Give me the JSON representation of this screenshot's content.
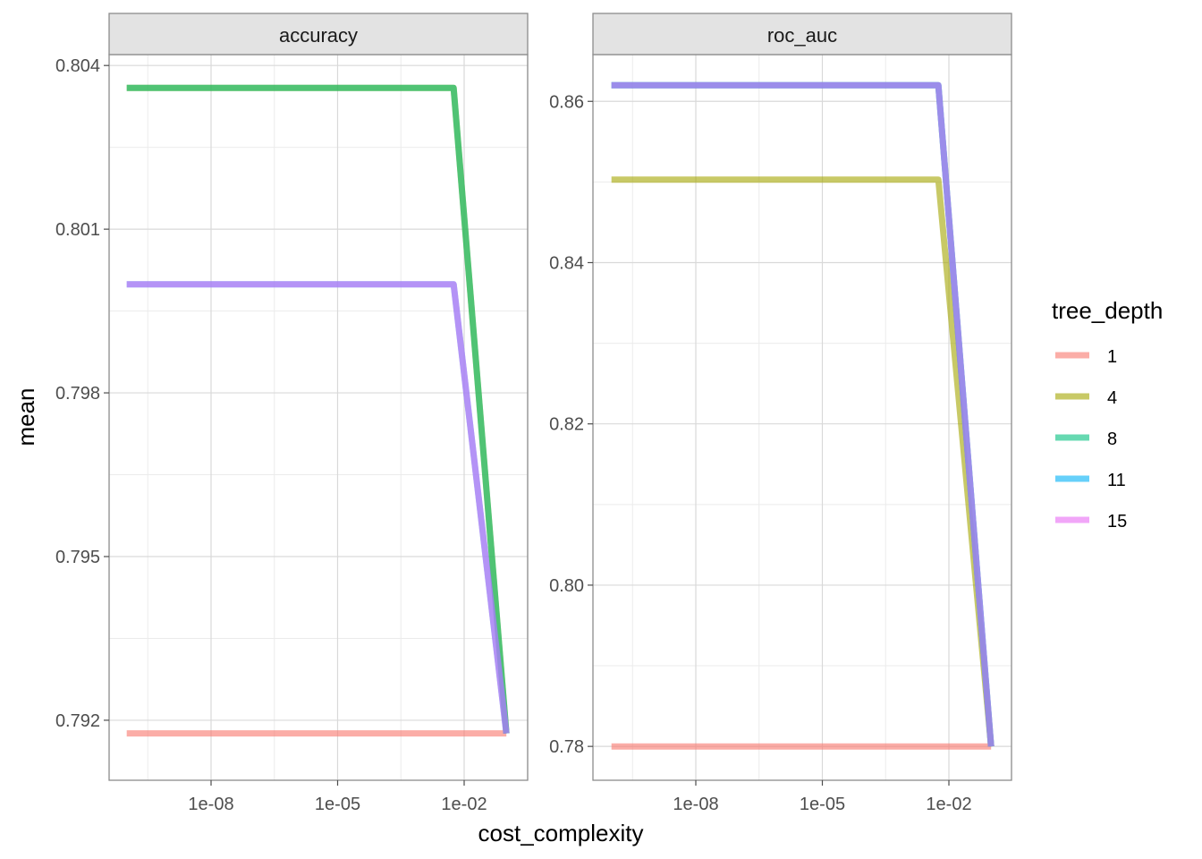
{
  "chart_data": {
    "type": "line",
    "xlabel": "cost_complexity",
    "ylabel": "mean",
    "x_scale": "log10",
    "x_ticks": [
      1e-08,
      1e-05,
      0.01
    ],
    "x_tick_labels": [
      "1e-08",
      "1e-05",
      "1e-02"
    ],
    "grid": true,
    "legend": {
      "title": "tree_depth",
      "placement": "right",
      "entries": [
        {
          "label": "1",
          "color": "#F8766D"
        },
        {
          "label": "4",
          "color": "#A3A500"
        },
        {
          "label": "8",
          "color": "#00BF7D"
        },
        {
          "label": "11",
          "color": "#00B0F6"
        },
        {
          "label": "15",
          "color": "#E76BF3"
        }
      ]
    },
    "x": [
      1e-10,
      1.778e-10,
      3.162e-09,
      5.623e-08,
      1e-06,
      1.778e-05,
      0.0003162,
      0.005623,
      0.1
    ],
    "facets": [
      {
        "strip": "accuracy",
        "ylim": [
          0.7909,
          0.8042
        ],
        "y_ticks": [
          0.792,
          0.795,
          0.798,
          0.801,
          0.804
        ],
        "y_tick_labels": [
          "0.792",
          "0.795",
          "0.798",
          "0.801",
          "0.804"
        ],
        "series": [
          {
            "name": "1",
            "color": "#F8766D",
            "values": [
              0.79176,
              0.79176,
              0.79176,
              0.79176,
              0.79176,
              0.79176,
              0.79176,
              0.79176,
              0.79176
            ]
          },
          {
            "name": "4",
            "color": "#A3A500",
            "values": [
              0.80359,
              0.80359,
              0.80359,
              0.80359,
              0.80359,
              0.80359,
              0.80359,
              0.80359,
              0.79176
            ]
          },
          {
            "name": "8",
            "color": "#00BF7D",
            "values": [
              0.80359,
              0.80359,
              0.80359,
              0.80359,
              0.80359,
              0.80359,
              0.80359,
              0.80359,
              0.79176
            ]
          },
          {
            "name": "11",
            "color": "#00B0F6",
            "values": [
              0.79999,
              0.79999,
              0.79999,
              0.79999,
              0.79999,
              0.79999,
              0.79999,
              0.79999,
              0.79176
            ]
          },
          {
            "name": "15",
            "color": "#E76BF3",
            "values": [
              0.79999,
              0.79999,
              0.79999,
              0.79999,
              0.79999,
              0.79999,
              0.79999,
              0.79999,
              0.79176
            ]
          }
        ]
      },
      {
        "strip": "roc_auc",
        "ylim": [
          0.7758,
          0.8658
        ],
        "y_ticks": [
          0.78,
          0.8,
          0.82,
          0.84,
          0.86
        ],
        "y_tick_labels": [
          "0.78",
          "0.80",
          "0.82",
          "0.84",
          "0.86"
        ],
        "series": [
          {
            "name": "1",
            "color": "#F8766D",
            "values": [
              0.78,
              0.78,
              0.78,
              0.78,
              0.78,
              0.78,
              0.78,
              0.78,
              0.78
            ]
          },
          {
            "name": "4",
            "color": "#A3A500",
            "values": [
              0.8503,
              0.8503,
              0.8503,
              0.8503,
              0.8503,
              0.8503,
              0.8503,
              0.8503,
              0.78
            ]
          },
          {
            "name": "8",
            "color": "#00BF7D",
            "values": [
              0.862,
              0.862,
              0.862,
              0.862,
              0.862,
              0.862,
              0.862,
              0.862,
              0.78
            ]
          },
          {
            "name": "11",
            "color": "#00B0F6",
            "values": [
              0.862,
              0.862,
              0.862,
              0.862,
              0.862,
              0.862,
              0.862,
              0.862,
              0.78
            ]
          },
          {
            "name": "15",
            "color": "#E76BF3",
            "values": [
              0.862,
              0.862,
              0.862,
              0.862,
              0.862,
              0.862,
              0.862,
              0.862,
              0.78
            ]
          }
        ]
      }
    ]
  }
}
